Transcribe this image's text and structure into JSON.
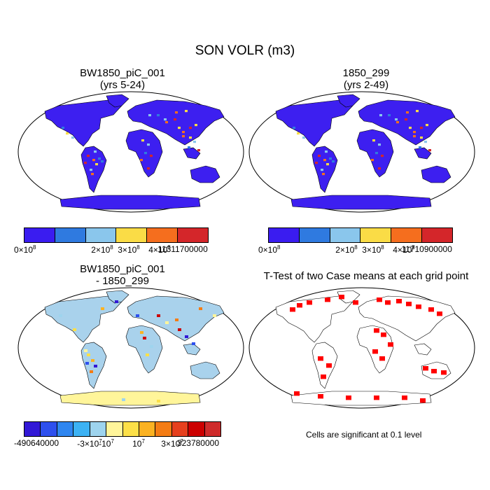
{
  "figure": {
    "title": "SON VOLR (m3)"
  },
  "panels": [
    {
      "id": "case1",
      "title_line1": "BW1850_piC_001",
      "title_line2": "(yrs 5-24)",
      "colorbar": {
        "colors": [
          "#3a1cf0",
          "#2f7ae0",
          "#8ac6ec",
          "#fadc46",
          "#f56e1e",
          "#d4262a"
        ],
        "ticks": [
          {
            "label": "0×10",
            "sup": "8"
          },
          {
            "label": "2×10",
            "sup": "8"
          },
          {
            "label": "3×10",
            "sup": "8"
          },
          {
            "label": "4×10",
            "sup": "8"
          },
          {
            "label": "11311700000",
            "sup": ""
          }
        ]
      }
    },
    {
      "id": "case2",
      "title_line1": "1850_299",
      "title_line2": "(yrs 2-49)",
      "colorbar": {
        "colors": [
          "#3a1cf0",
          "#2f7ae0",
          "#8ac6ec",
          "#fadc46",
          "#f56e1e",
          "#d4262a"
        ],
        "ticks": [
          {
            "label": "0×10",
            "sup": "8"
          },
          {
            "label": "2×10",
            "sup": "8"
          },
          {
            "label": "3×10",
            "sup": "8"
          },
          {
            "label": "4×10",
            "sup": "8"
          },
          {
            "label": "11710900000",
            "sup": ""
          }
        ]
      }
    },
    {
      "id": "diff",
      "title_line1": "BW1850_piC_001",
      "title_line2": "- 1850_299",
      "colorbar": {
        "colors": [
          "#3218d6",
          "#2e50ee",
          "#2f86f0",
          "#3cb2f4",
          "#9ed4ee",
          "#fff59a",
          "#fce048",
          "#fbb222",
          "#f47c14",
          "#e6401e",
          "#cc0000",
          "#cf2b2b"
        ],
        "ticks": [
          {
            "label": "-490640000",
            "sup": ""
          },
          {
            "label": "-3×10",
            "sup": "7"
          },
          {
            "label": "-10",
            "sup": "7"
          },
          {
            "label": "10",
            "sup": "7"
          },
          {
            "label": "3×10",
            "sup": "7"
          },
          {
            "label": "323780000",
            "sup": ""
          }
        ]
      }
    },
    {
      "id": "ttest",
      "title_line1": "T-Test of two Case means at each grid point",
      "title_line2": "",
      "note": "Cells are significant at 0.1 level"
    }
  ],
  "colors": {
    "ocean": "#ffffff",
    "land_base_abs": "#3d1ff0",
    "land_base_diff": "#a9d2ec",
    "antarctica_diff": "#fff59a",
    "signif": "#ff0000"
  }
}
